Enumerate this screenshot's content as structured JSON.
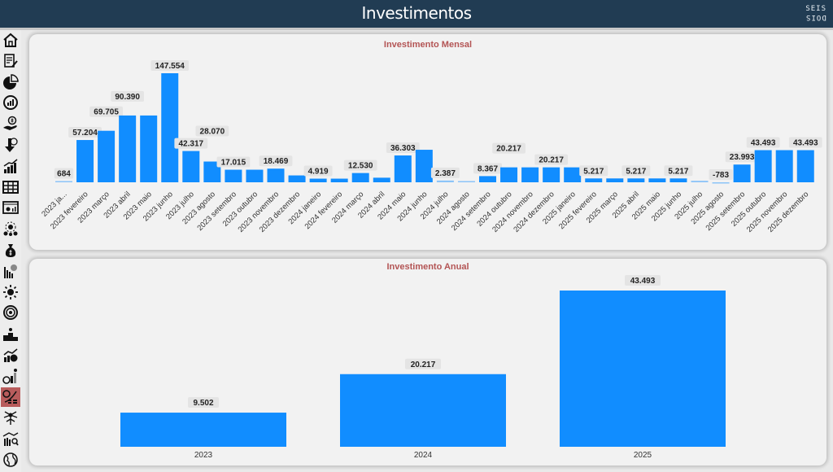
{
  "header": {
    "title": "Investimentos",
    "logo_top": "SEIS",
    "logo_bottom": "DOIS"
  },
  "sidebar": {
    "items": [
      {
        "icon": "home-icon"
      },
      {
        "icon": "document-edit-icon"
      },
      {
        "icon": "pie-chart-icon"
      },
      {
        "icon": "gauge-chart-icon"
      },
      {
        "icon": "hand-money-icon"
      },
      {
        "icon": "down-percent-icon"
      },
      {
        "icon": "growth-bars-icon"
      },
      {
        "icon": "table-icon"
      },
      {
        "icon": "dashboard-icon"
      },
      {
        "icon": "money-network-icon"
      },
      {
        "icon": "money-bag-icon"
      },
      {
        "icon": "bar-money-icon"
      },
      {
        "icon": "sun-money-icon"
      },
      {
        "icon": "target-icon"
      },
      {
        "icon": "podium-icon"
      },
      {
        "icon": "trend-clock-icon"
      },
      {
        "icon": "investment-growth-icon"
      },
      {
        "icon": "investment-trend-icon",
        "active": true
      },
      {
        "icon": "tree-network-icon"
      },
      {
        "icon": "bar-search-icon"
      },
      {
        "icon": "globe-icon"
      }
    ],
    "active_color": "#b85c5c"
  },
  "colors": {
    "bar": "#118dff",
    "title": "#b35454",
    "header": "#213c53"
  },
  "chart_data": [
    {
      "type": "bar",
      "title": "Investimento Mensal",
      "xlabel": "",
      "ylabel": "",
      "categories": [
        "2023 ja...",
        "2023 fevereiro",
        "2023 março",
        "2023 abril",
        "2023 maio",
        "2023 junho",
        "2023 julho",
        "2023 agosto",
        "2023 setembro",
        "2023 outubro",
        "2023 novembro",
        "2023 dezembro",
        "2024 janeiro",
        "2024 fevereiro",
        "2024 março",
        "2024 abril",
        "2024 maio",
        "2024 junho",
        "2024 julho",
        "2024 agosto",
        "2024 setembro",
        "2024 outubro",
        "2024 novembro",
        "2024 dezembro",
        "2025 janeiro",
        "2025 fevereiro",
        "2025 março",
        "2025 abril",
        "2025 maio",
        "2025 junho",
        "2025 julho",
        "2025 agosto",
        "2025 setembro",
        "2025 outubro",
        "2025 novembro",
        "2025 dezembro"
      ],
      "values": [
        684,
        57204,
        69705,
        90390,
        90390,
        147554,
        42317,
        28070,
        17015,
        17015,
        18469,
        9300,
        4919,
        4919,
        12530,
        6200,
        36303,
        44000,
        2387,
        1500,
        8367,
        20217,
        20217,
        20217,
        20217,
        5217,
        5217,
        5217,
        5217,
        5217,
        2000,
        -783,
        23993,
        43493,
        43493,
        43493
      ],
      "labels": [
        "684",
        "57.204",
        "69.705",
        "90.390",
        "",
        "147.554",
        "42.317",
        "28.070",
        "17.015",
        "",
        "18.469",
        "",
        "4.919",
        "",
        "12.530",
        "",
        "36.303",
        "",
        "2.387",
        "",
        "8.367",
        "20.217",
        "",
        "20.217",
        "",
        "5.217",
        "",
        "5.217",
        "",
        "5.217",
        "",
        "-783",
        "23.993",
        "43.493",
        "",
        "43.493"
      ],
      "ylim": [
        -783,
        147554
      ],
      "grid": false
    },
    {
      "type": "bar",
      "title": "Investimento Anual",
      "xlabel": "",
      "ylabel": "",
      "categories": [
        "2023",
        "2024",
        "2025"
      ],
      "values": [
        9502,
        20217,
        43493
      ],
      "labels": [
        "9.502",
        "20.217",
        "43.493"
      ],
      "ylim": [
        0,
        43493
      ],
      "grid": false
    }
  ]
}
